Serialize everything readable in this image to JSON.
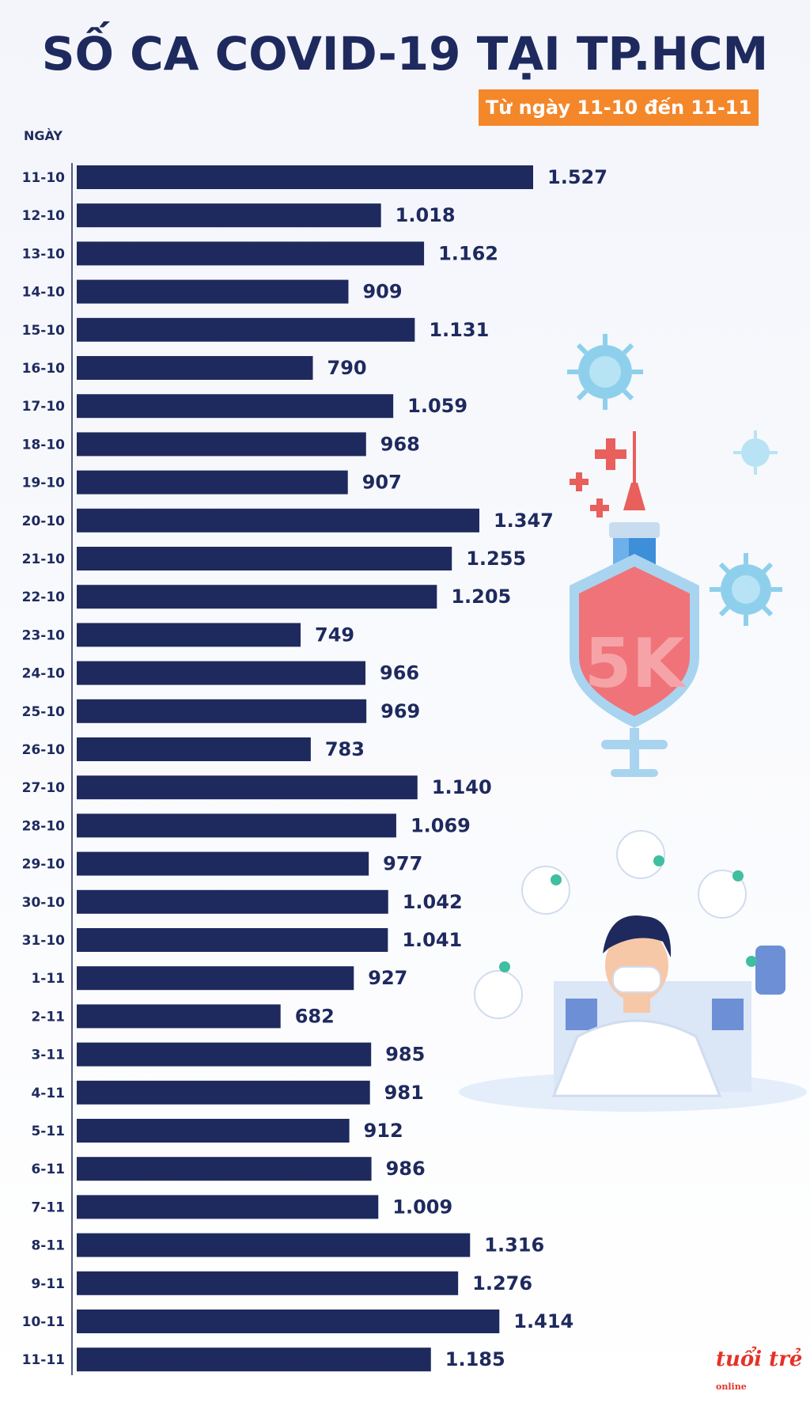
{
  "chart_data": {
    "type": "bar",
    "orientation": "horizontal",
    "title": "SỐ CA COVID-19 TẠI TP.HCM",
    "subtitle": "Từ ngày 11-10 đến 11-11",
    "ylabel": "NGÀY",
    "xlim": [
      0,
      1600
    ],
    "categories": [
      "11-10",
      "12-10",
      "13-10",
      "14-10",
      "15-10",
      "16-10",
      "17-10",
      "18-10",
      "19-10",
      "20-10",
      "21-10",
      "22-10",
      "23-10",
      "24-10",
      "25-10",
      "26-10",
      "27-10",
      "28-10",
      "29-10",
      "30-10",
      "31-10",
      "1-11",
      "2-11",
      "3-11",
      "4-11",
      "5-11",
      "6-11",
      "7-11",
      "8-11",
      "9-11",
      "10-11",
      "11-11"
    ],
    "values": [
      1527,
      1018,
      1162,
      909,
      1131,
      790,
      1059,
      968,
      907,
      1347,
      1255,
      1205,
      749,
      966,
      969,
      783,
      1140,
      1069,
      977,
      1042,
      1041,
      927,
      682,
      985,
      981,
      912,
      986,
      1009,
      1316,
      1276,
      1414,
      1185
    ],
    "value_labels": [
      "1.527",
      "1.018",
      "1.162",
      "909",
      "1.131",
      "790",
      "1.059",
      "968",
      "907",
      "1.347",
      "1.255",
      "1.205",
      "749",
      "966",
      "969",
      "783",
      "1.140",
      "1.069",
      "977",
      "1.042",
      "1.041",
      "927",
      "682",
      "985",
      "981",
      "912",
      "986",
      "1.009",
      "1.316",
      "1.276",
      "1.414",
      "1.185"
    ],
    "bar_color": "#1e2a5e"
  },
  "logo": {
    "name": "tuổi trẻ",
    "sub": "online"
  }
}
